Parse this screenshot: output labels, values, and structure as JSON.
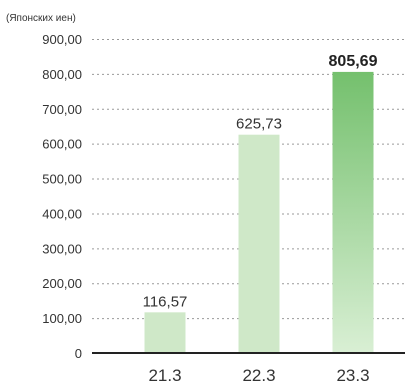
{
  "chart_data": {
    "type": "bar",
    "unit_label": "(Японских иен)",
    "categories": [
      "21.3",
      "22.3",
      "23.3"
    ],
    "values": [
      116.57,
      625.73,
      805.69
    ],
    "value_labels": [
      "116,57",
      "625,73",
      "805,69"
    ],
    "highlight_index": 2,
    "ylim": [
      0,
      900
    ],
    "y_ticks": [
      {
        "value": 0,
        "label": "0"
      },
      {
        "value": 100,
        "label": "100,00"
      },
      {
        "value": 200,
        "label": "200,00"
      },
      {
        "value": 300,
        "label": "300,00"
      },
      {
        "value": 400,
        "label": "400,00"
      },
      {
        "value": 500,
        "label": "500,00"
      },
      {
        "value": 600,
        "label": "600,00"
      },
      {
        "value": 700,
        "label": "700,00"
      },
      {
        "value": 800,
        "label": "800,00"
      },
      {
        "value": 900,
        "label": "900,00"
      }
    ],
    "grid": true,
    "colors": {
      "bar": "#cfe8c8",
      "highlight_top": "#74c06d",
      "highlight_bottom": "#d9efd4"
    }
  }
}
